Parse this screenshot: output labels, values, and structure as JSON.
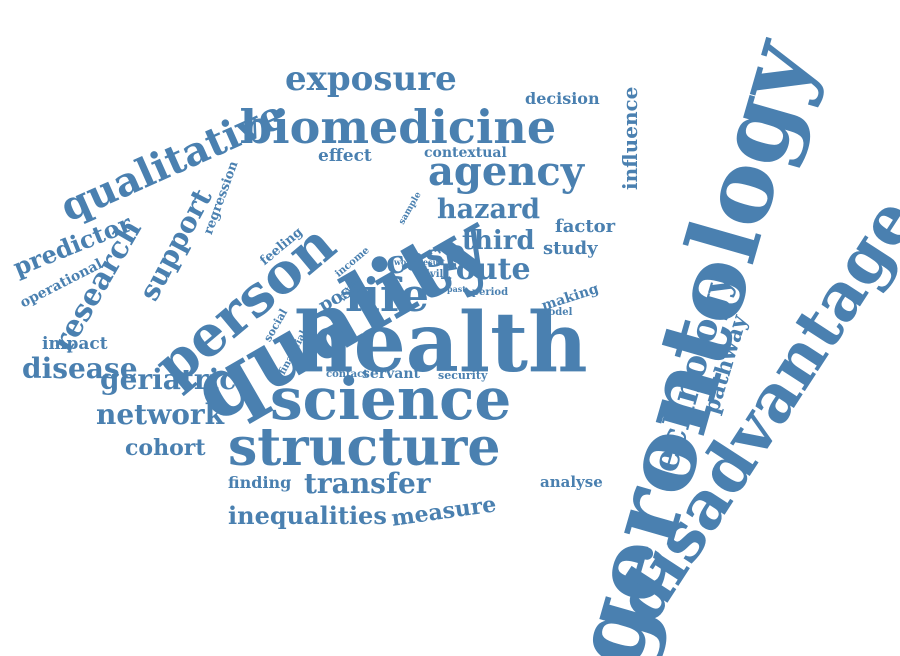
{
  "style": {
    "word_color": "#4a80b0",
    "background": "#ffffff"
  },
  "words": [
    "gerontology",
    "quality",
    "health",
    "disadvantage",
    "person",
    "science",
    "structure",
    "biomedicine",
    "qualitative",
    "exposure",
    "life",
    "agency",
    "technology",
    "research",
    "support",
    "route",
    "casp",
    "hazard",
    "third",
    "geriatric",
    "network",
    "disease",
    "transfer",
    "inequalities",
    "measure",
    "predictor",
    "pathway",
    "influence",
    "cohort",
    "impact",
    "effect",
    "decision",
    "contextual",
    "factor",
    "study",
    "operational",
    "regression",
    "feeling",
    "making",
    "finding",
    "post",
    "analyse",
    "servant",
    "income",
    "social",
    "financial",
    "sample",
    "security",
    "contact",
    "model",
    "civil",
    "work result",
    "living",
    "period",
    "past"
  ]
}
